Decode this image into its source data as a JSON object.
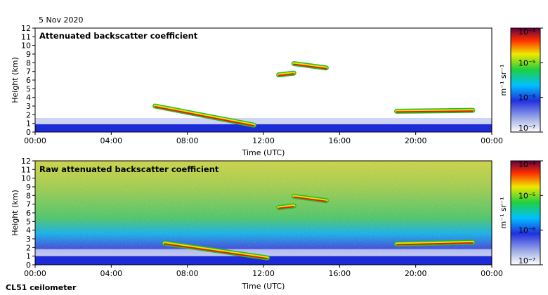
{
  "header": {
    "date": "5 Nov 2020"
  },
  "footer": {
    "instrument": "CL51 ceilometer"
  },
  "chart_data": [
    {
      "type": "heatmap",
      "title": "Attenuated backscatter coefficient",
      "xlabel": "Time (UTC)",
      "ylabel": "Height (km)",
      "xticks": [
        "00:00",
        "04:00",
        "08:00",
        "12:00",
        "16:00",
        "20:00",
        "00:00"
      ],
      "xlim_hours": [
        0,
        24
      ],
      "yticks": [
        0,
        1,
        2,
        3,
        4,
        5,
        6,
        7,
        8,
        9,
        10,
        11,
        12
      ],
      "ylim": [
        0,
        12
      ],
      "colorbar": {
        "label": "m⁻¹ sr⁻¹",
        "scale": "log",
        "range": [
          1e-07,
          0.0001
        ],
        "ticks": [
          "10⁻⁷",
          "10⁻⁶",
          "10⁻⁵",
          "10⁻⁴"
        ]
      },
      "features": [
        {
          "kind": "boundary-layer",
          "from_h": 0,
          "to_h": 24,
          "top_km": 0.9
        },
        {
          "kind": "cloud-layer",
          "from_h": 6.3,
          "to_h": 11.5,
          "start_km": 3.0,
          "end_km": 0.8
        },
        {
          "kind": "cloud-layer",
          "from_h": 12.8,
          "to_h": 13.6,
          "start_km": 6.6,
          "end_km": 6.8
        },
        {
          "kind": "cloud-layer",
          "from_h": 13.6,
          "to_h": 15.3,
          "start_km": 7.9,
          "end_km": 7.4
        },
        {
          "kind": "cloud-layer",
          "from_h": 19.0,
          "to_h": 23.0,
          "start_km": 2.4,
          "end_km": 2.5
        }
      ]
    },
    {
      "type": "heatmap",
      "title": "Raw attenuated backscatter coefficient",
      "xlabel": "Time (UTC)",
      "ylabel": "Height (km)",
      "xticks": [
        "00:00",
        "04:00",
        "08:00",
        "12:00",
        "16:00",
        "20:00",
        "00:00"
      ],
      "xlim_hours": [
        0,
        24
      ],
      "yticks": [
        0,
        1,
        2,
        3,
        4,
        5,
        6,
        7,
        8,
        9,
        10,
        11,
        12
      ],
      "ylim": [
        0,
        12
      ],
      "colorbar": {
        "label": "m⁻¹ sr⁻¹",
        "scale": "log",
        "range": [
          1e-07,
          0.0001
        ],
        "ticks": [
          "10⁻⁷",
          "10⁻⁶",
          "10⁻⁵",
          "10⁻⁴"
        ]
      },
      "features": [
        {
          "kind": "boundary-layer",
          "from_h": 0,
          "to_h": 24,
          "top_km": 1.0
        },
        {
          "kind": "cloud-layer",
          "from_h": 6.8,
          "to_h": 12.2,
          "start_km": 2.5,
          "end_km": 0.8
        },
        {
          "kind": "cloud-layer",
          "from_h": 12.8,
          "to_h": 13.6,
          "start_km": 6.6,
          "end_km": 6.8
        },
        {
          "kind": "cloud-layer",
          "from_h": 13.6,
          "to_h": 15.3,
          "start_km": 7.9,
          "end_km": 7.4
        },
        {
          "kind": "cloud-layer",
          "from_h": 19.0,
          "to_h": 23.0,
          "start_km": 2.4,
          "end_km": 2.6
        }
      ]
    }
  ]
}
